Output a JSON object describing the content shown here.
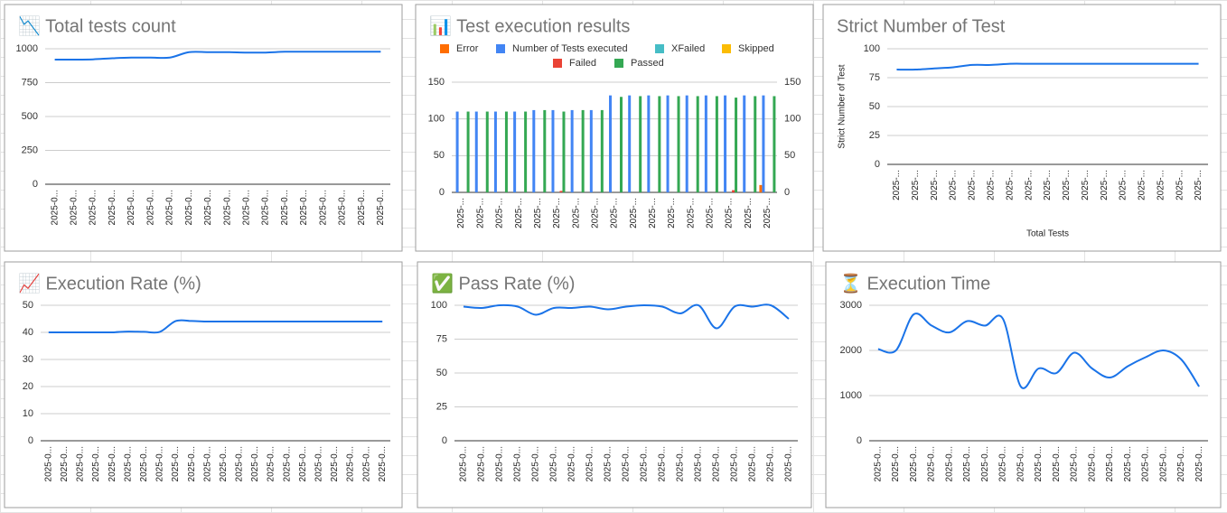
{
  "chart_data": [
    {
      "type": "line",
      "title": "📉 Total tests count",
      "color": "#1a73e8",
      "categories": [
        "2025-0...",
        "2025-0...",
        "2025-0...",
        "2025-0...",
        "2025-0...",
        "2025-0...",
        "2025-0...",
        "2025-0...",
        "2025-0...",
        "2025-0...",
        "2025-0...",
        "2025-0...",
        "2025-0...",
        "2025-0...",
        "2025-0...",
        "2025-0...",
        "2025-0...",
        "2025-0..."
      ],
      "series": [
        {
          "values": [
            920,
            920,
            922,
            930,
            935,
            935,
            935,
            975,
            975,
            975,
            972,
            972,
            978,
            978,
            978,
            978,
            978,
            978
          ]
        }
      ],
      "ylim": [
        0,
        1000
      ],
      "yticks": [
        0,
        250,
        500,
        750,
        1000
      ],
      "grid": true
    },
    {
      "type": "bar",
      "title": "📊 Test execution results",
      "categories": [
        "2025-...",
        "2025-...",
        "2025-...",
        "2025-...",
        "2025-...",
        "2025-...",
        "2025-...",
        "2025-...",
        "2025-...",
        "2025-...",
        "2025-...",
        "2025-...",
        "2025-...",
        "2025-...",
        "2025-...",
        "2025-...",
        "2025-..."
      ],
      "series": [
        {
          "name": "Error",
          "color": "#ff6d01",
          "values": [
            0,
            0,
            0,
            0,
            0,
            0,
            0,
            0,
            0,
            0,
            0,
            0,
            0,
            0,
            0,
            0,
            10
          ]
        },
        {
          "name": "Number of Tests executed",
          "color": "#4285f4",
          "values": [
            110,
            110,
            110,
            110,
            112,
            112,
            112,
            112,
            132,
            132,
            132,
            132,
            132,
            132,
            132,
            132,
            132
          ]
        },
        {
          "name": "XFailed",
          "color": "#46bdc6",
          "values": [
            0,
            0,
            0,
            0,
            0,
            0,
            0,
            0,
            0,
            0,
            0,
            0,
            0,
            0,
            0,
            0,
            0
          ]
        },
        {
          "name": "Skipped",
          "color": "#fbbc04",
          "values": [
            0,
            0,
            0,
            0,
            0,
            0,
            0,
            0,
            0,
            0,
            0,
            0,
            0,
            0,
            0,
            0,
            0
          ]
        },
        {
          "name": "Failed",
          "color": "#ea4335",
          "values": [
            0,
            0,
            0,
            0,
            0,
            2,
            0,
            0,
            0,
            0,
            0,
            0,
            0,
            0,
            3,
            0,
            0
          ]
        },
        {
          "name": "Passed",
          "color": "#34a853",
          "values": [
            110,
            110,
            110,
            110,
            112,
            110,
            112,
            112,
            130,
            131,
            131,
            131,
            131,
            131,
            129,
            131,
            131
          ]
        }
      ],
      "ylim": [
        0,
        150
      ],
      "yticks": [
        0,
        50,
        100,
        150
      ],
      "y2lim": [
        0,
        150
      ],
      "y2ticks": [
        0,
        50,
        100,
        150
      ],
      "grid": true,
      "legend": "top"
    },
    {
      "type": "line",
      "title": "Strict Number of Test",
      "color": "#1a73e8",
      "xlabel": "Total Tests",
      "ylabel": "Strict Number of Test",
      "categories": [
        "2025-...",
        "2025-...",
        "2025-...",
        "2025-...",
        "2025-...",
        "2025-...",
        "2025-...",
        "2025-...",
        "2025-...",
        "2025-...",
        "2025-...",
        "2025-...",
        "2025-...",
        "2025-...",
        "2025-...",
        "2025-...",
        "2025-..."
      ],
      "series": [
        {
          "values": [
            82,
            82,
            83,
            84,
            86,
            86,
            87,
            87,
            87,
            87,
            87,
            87,
            87,
            87,
            87,
            87,
            87
          ]
        }
      ],
      "ylim": [
        0,
        100
      ],
      "yticks": [
        0,
        25,
        50,
        75,
        100
      ],
      "grid": true
    },
    {
      "type": "line",
      "title": "📈 Execution Rate (%)",
      "color": "#1a73e8",
      "categories": [
        "2025-0...",
        "2025-0...",
        "2025-0...",
        "2025-0...",
        "2025-0...",
        "2025-0...",
        "2025-0...",
        "2025-0...",
        "2025-0...",
        "2025-0...",
        "2025-0...",
        "2025-0...",
        "2025-0...",
        "2025-0...",
        "2025-0...",
        "2025-0...",
        "2025-0...",
        "2025-0...",
        "2025-0...",
        "2025-0...",
        "2025-0...",
        "2025-0..."
      ],
      "series": [
        {
          "values": [
            40,
            40,
            40,
            40,
            40,
            40.3,
            40.2,
            40.2,
            44.2,
            44.2,
            44,
            44,
            44,
            44,
            44,
            44,
            44,
            44,
            44,
            44,
            44,
            44
          ]
        }
      ],
      "ylim": [
        0,
        50
      ],
      "yticks": [
        0,
        10,
        20,
        30,
        40,
        50
      ],
      "grid": true
    },
    {
      "type": "line",
      "title": "✅ Pass Rate (%)",
      "color": "#1a73e8",
      "categories": [
        "2025-0...",
        "2025-0...",
        "2025-0...",
        "2025-0...",
        "2025-0...",
        "2025-0...",
        "2025-0...",
        "2025-0...",
        "2025-0...",
        "2025-0...",
        "2025-0...",
        "2025-0...",
        "2025-0...",
        "2025-0...",
        "2025-0...",
        "2025-0...",
        "2025-0...",
        "2025-0...",
        "2025-0..."
      ],
      "series": [
        {
          "values": [
            99,
            98,
            100,
            99,
            93,
            98,
            98,
            99,
            97,
            99,
            100,
            99,
            94,
            100,
            83,
            99,
            99,
            100,
            90
          ]
        }
      ],
      "ylim": [
        0,
        100
      ],
      "yticks": [
        0,
        25,
        50,
        75,
        100
      ],
      "grid": true
    },
    {
      "type": "line",
      "title": "⏳ Execution Time",
      "color": "#1a73e8",
      "categories": [
        "2025-0...",
        "2025-0...",
        "2025-0...",
        "2025-0...",
        "2025-0...",
        "2025-0...",
        "2025-0...",
        "2025-0...",
        "2025-0...",
        "2025-0...",
        "2025-0...",
        "2025-0...",
        "2025-0...",
        "2025-0...",
        "2025-0...",
        "2025-0...",
        "2025-0...",
        "2025-0...",
        "2025-0..."
      ],
      "series": [
        {
          "values": [
            2030,
            2000,
            2800,
            2550,
            2400,
            2650,
            2550,
            2700,
            1200,
            1600,
            1500,
            1950,
            1600,
            1400,
            1650,
            1850,
            2000,
            1800,
            1200
          ]
        }
      ],
      "ylim": [
        0,
        3000
      ],
      "yticks": [
        0,
        1000,
        2000,
        3000
      ],
      "grid": true
    }
  ]
}
